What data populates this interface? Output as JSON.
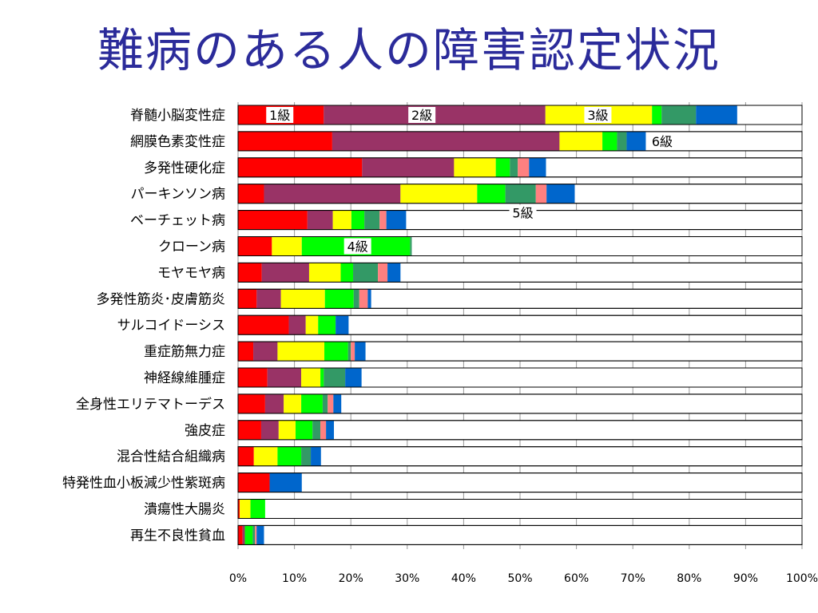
{
  "title": "難病のある人の障害認定状況",
  "colors": {
    "1級": "#ff0000",
    "2級": "#993366",
    "3級": "#ffff00",
    "4級": "#00ff00",
    "5級_a": "#339966",
    "5級_b": "#ff8080",
    "6級": "#0066cc",
    "rest": "#ffffff"
  },
  "chart_data": {
    "type": "bar",
    "orientation": "horizontal",
    "stacked": true,
    "xlim": [
      0,
      100
    ],
    "x_ticks": [
      "0%",
      "10%",
      "20%",
      "30%",
      "40%",
      "50%",
      "60%",
      "70%",
      "80%",
      "90%",
      "100%"
    ],
    "grid": true,
    "categories": [
      "脊髄小脳変性症",
      "網膜色素変性症",
      "多発性硬化症",
      "パーキンソン病",
      "ベーチェット病",
      "クローン病",
      "モヤモヤ病",
      "多発性筋炎･皮膚筋炎",
      "サルコイドーシス",
      "重症筋無力症",
      "神経線維腫症",
      "全身性エリテマトーデス",
      "強皮症",
      "混合性結合組織病",
      "特発性血小板減少性紫斑病",
      "潰瘍性大腸炎",
      "再生不良性貧血"
    ],
    "series": [
      {
        "name": "1級",
        "color": "#ff0000",
        "values": [
          15.2,
          16.7,
          22.0,
          4.6,
          12.3,
          6.0,
          4.2,
          3.3,
          9.0,
          2.7,
          5.2,
          4.8,
          4.1,
          2.8,
          5.6,
          0.3,
          0.8
        ]
      },
      {
        "name": "2級",
        "color": "#993366",
        "values": [
          39.3,
          40.3,
          16.3,
          24.2,
          4.5,
          0.0,
          8.4,
          4.3,
          3.0,
          4.3,
          6.0,
          3.3,
          3.1,
          0.0,
          0.0,
          0.0,
          0.4
        ]
      },
      {
        "name": "3級",
        "color": "#ffff00",
        "values": [
          18.9,
          7.6,
          7.4,
          13.6,
          3.3,
          5.3,
          5.6,
          7.8,
          2.2,
          8.3,
          3.4,
          3.1,
          3.0,
          4.2,
          0.0,
          1.9,
          0.0
        ]
      },
      {
        "name": "4級",
        "color": "#00ff00",
        "values": [
          1.7,
          2.6,
          2.5,
          5.0,
          2.3,
          19.2,
          2.2,
          5.1,
          3.1,
          4.2,
          0.6,
          3.8,
          3.0,
          4.2,
          0.0,
          2.6,
          1.4
        ]
      },
      {
        "name": "5級",
        "color": "#339966",
        "values": [
          6.1,
          1.7,
          1.4,
          5.4,
          2.7,
          0.3,
          4.4,
          1.0,
          0.0,
          0.5,
          3.8,
          0.9,
          1.4,
          1.7,
          0.0,
          0.0,
          0.4
        ]
      },
      {
        "name": "",
        "color": "#ff8080",
        "values": [
          0.0,
          0.0,
          2.0,
          1.9,
          1.2,
          0.0,
          1.7,
          1.5,
          0.0,
          0.7,
          0.0,
          1.0,
          1.0,
          0.0,
          0.0,
          0.0,
          0.3
        ]
      },
      {
        "name": "6級",
        "color": "#0066cc",
        "values": [
          7.3,
          3.4,
          3.0,
          5.0,
          3.5,
          0.0,
          2.3,
          0.6,
          2.3,
          1.9,
          2.9,
          1.4,
          1.4,
          1.8,
          5.7,
          0.0,
          1.3
        ]
      }
    ],
    "annotations": [
      {
        "text": "1級",
        "row": 0,
        "x": 7.4
      },
      {
        "text": "2級",
        "row": 0,
        "x": 32.6
      },
      {
        "text": "3級",
        "row": 0,
        "x": 63.8
      },
      {
        "text": "6級",
        "row": 1,
        "x": 75.2
      },
      {
        "text": "5級",
        "row": 3,
        "x": 50.5,
        "below": true
      },
      {
        "text": "4級",
        "row": 5,
        "x": 21.2
      }
    ]
  }
}
